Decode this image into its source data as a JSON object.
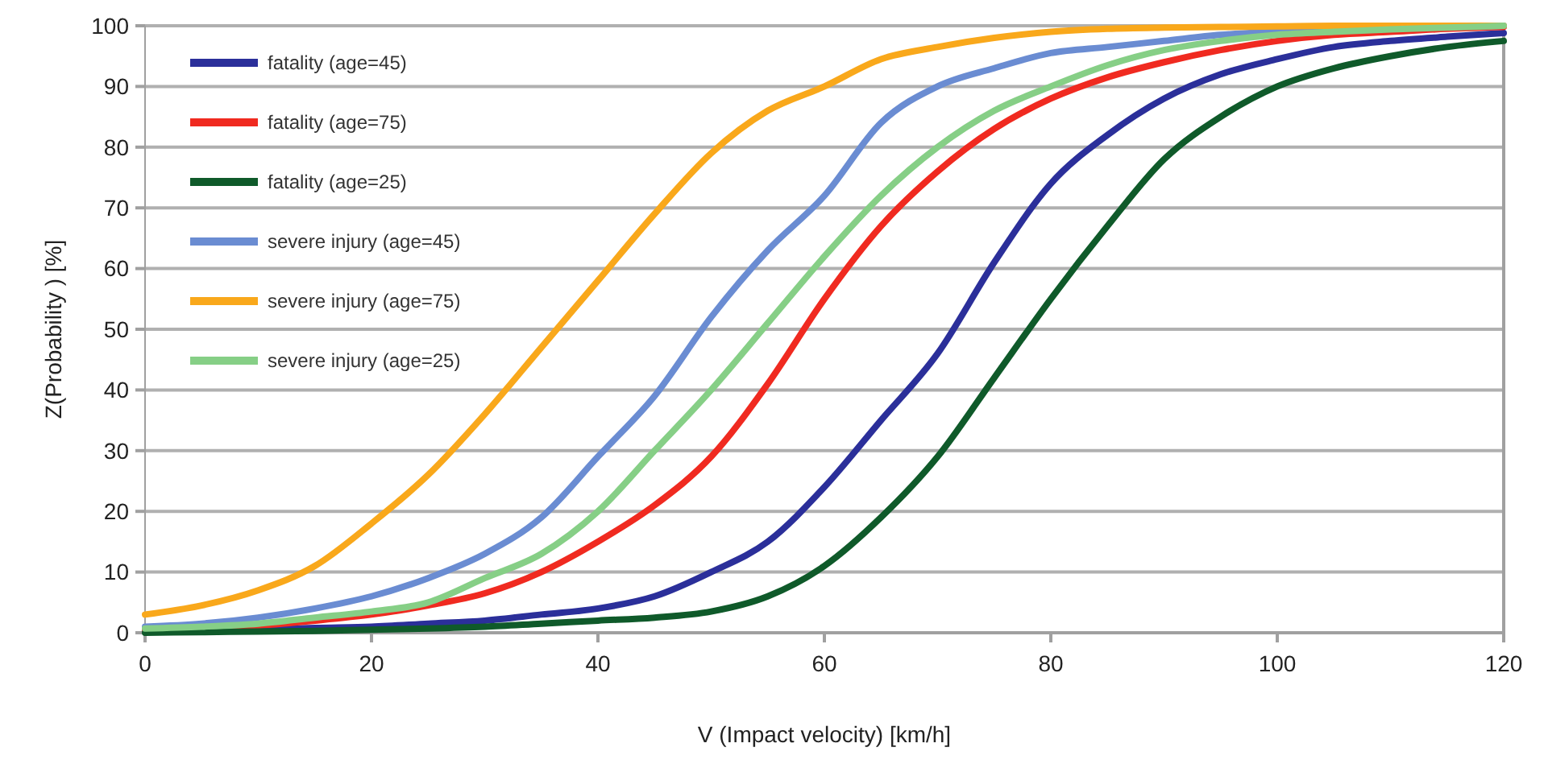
{
  "chart_data": {
    "type": "line",
    "xlabel": "V (Impact velocity) [km/h]",
    "ylabel": "Z(Probability ) [%]",
    "x": [
      0,
      5,
      10,
      15,
      20,
      25,
      30,
      35,
      40,
      45,
      50,
      55,
      60,
      65,
      70,
      75,
      80,
      85,
      90,
      95,
      100,
      105,
      110,
      115,
      120
    ],
    "xlim": [
      0,
      120
    ],
    "xticks": [
      0,
      20,
      40,
      60,
      80,
      100,
      120
    ],
    "ylim": [
      0,
      100
    ],
    "yticks": [
      0,
      10,
      20,
      30,
      40,
      50,
      60,
      70,
      80,
      90,
      100
    ],
    "grid": "y",
    "legend": "top left",
    "marker": "none",
    "line_style": "solid",
    "series": [
      {
        "name": "fatality (age=45)",
        "color": "#2b2f9a",
        "values": [
          0.2,
          0.3,
          0.5,
          0.8,
          1,
          1.5,
          2,
          3,
          4,
          6,
          10,
          15,
          24,
          35,
          46,
          61,
          74,
          82,
          88,
          92,
          94.5,
          96.5,
          97.5,
          98.2,
          98.8
        ]
      },
      {
        "name": "fatality (age=75)",
        "color": "#f02a20",
        "values": [
          0.5,
          0.8,
          1.2,
          2,
          3,
          4.5,
          6.5,
          10,
          15,
          21,
          29,
          41,
          55,
          67,
          76,
          83,
          88,
          91.5,
          94,
          96,
          97.5,
          98.5,
          99,
          99.5,
          99.8
        ]
      },
      {
        "name": "fatality (age=25)",
        "color": "#0f5a2a",
        "values": [
          0,
          0.1,
          0.2,
          0.3,
          0.5,
          0.7,
          1,
          1.5,
          2,
          2.5,
          3.5,
          6,
          11,
          19,
          29,
          42,
          55,
          67,
          78,
          85,
          90,
          93,
          95,
          96.5,
          97.5
        ]
      },
      {
        "name": "severe injury (age=45)",
        "color": "#6a8cd2",
        "values": [
          1,
          1.5,
          2.5,
          4,
          6,
          9,
          13,
          19,
          29,
          39,
          52,
          63,
          72,
          84,
          90,
          93,
          95.5,
          96.5,
          97.5,
          98.5,
          99,
          99.4,
          99.6,
          99.8,
          100
        ]
      },
      {
        "name": "severe injury (age=75)",
        "color": "#f9a81b",
        "values": [
          3,
          4.5,
          7,
          11,
          18,
          26,
          36,
          47,
          58,
          69,
          79,
          86,
          90,
          94.5,
          96.5,
          98,
          99,
          99.5,
          99.7,
          99.8,
          99.9,
          100,
          100,
          100,
          100
        ]
      },
      {
        "name": "severe injury (age=25)",
        "color": "#86cf86",
        "values": [
          0.7,
          1,
          1.5,
          2.5,
          3.5,
          5,
          9,
          13,
          20,
          30,
          40,
          51,
          62,
          72,
          80,
          86,
          90,
          93.5,
          96,
          97.5,
          98.5,
          99,
          99.4,
          99.7,
          100
        ]
      }
    ]
  }
}
